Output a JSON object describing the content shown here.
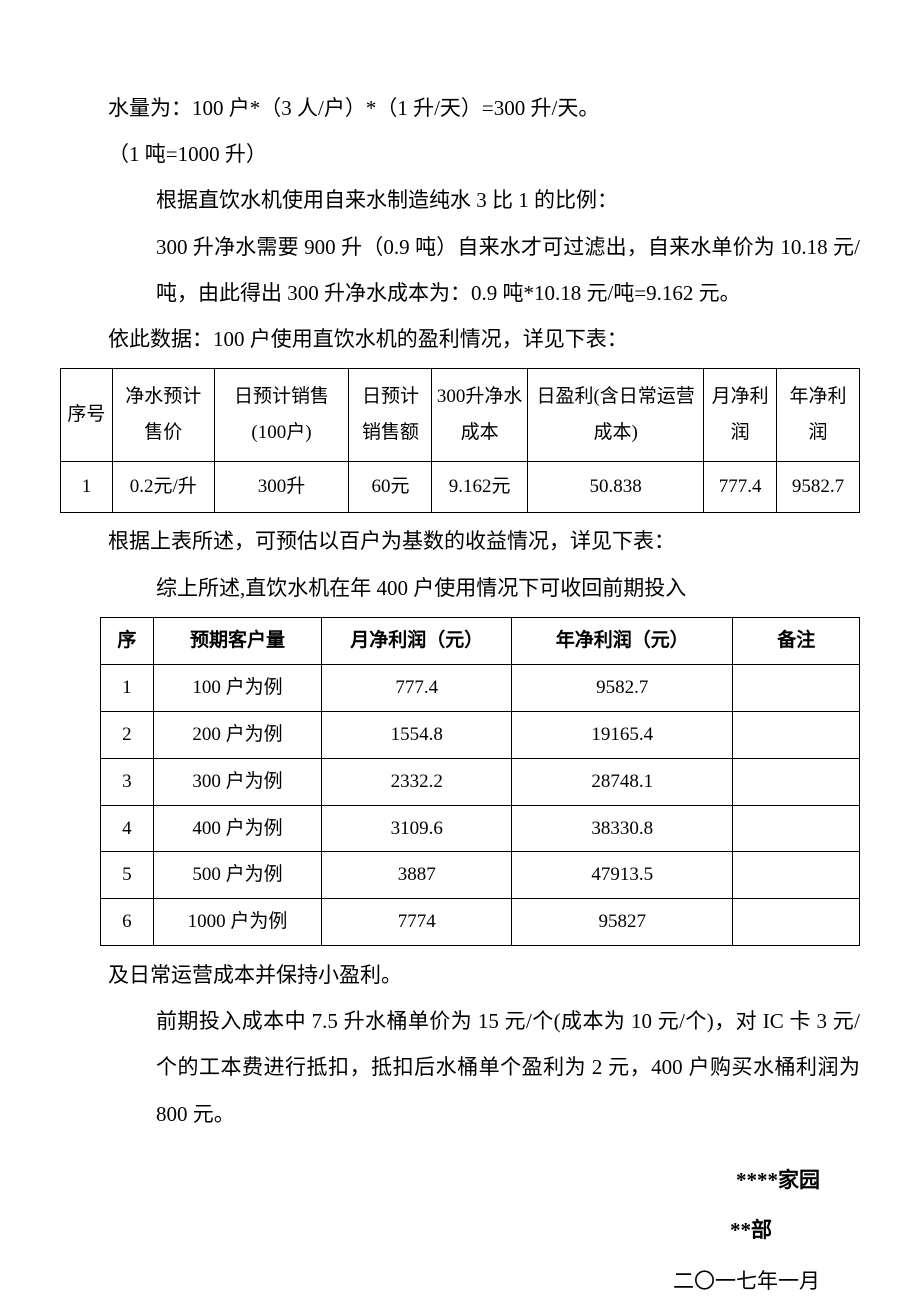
{
  "para1": "水量为：100 户*（3 人/户）*（1 升/天）=300 升/天。",
  "para2": "（1 吨=1000 升）",
  "para3": "根据直饮水机使用自来水制造纯水 3 比 1 的比例：",
  "para4": "300 升净水需要 900 升（0.9 吨）自来水才可过滤出，自来水单价为 10.18 元/吨，由此得出 300 升净水成本为：0.9 吨*10.18 元/吨=9.162 元。",
  "para5": "依此数据：100 户使用直饮水机的盈利情况，详见下表：",
  "table1": {
    "headers": [
      "序号",
      "净水预计售价",
      "日预计销售(100户)",
      "日预计销售额",
      "300升净水成本",
      "日盈利(含日常运营成本)",
      "月净利润",
      "年净利润"
    ],
    "row": [
      "1",
      "0.2元/升",
      "300升",
      "60元",
      "9.162元",
      "50.838",
      "777.4",
      "9582.7"
    ],
    "col_widths": [
      "50",
      "98",
      "130",
      "80",
      "92",
      "170",
      "70",
      "80"
    ]
  },
  "para6": "根据上表所述，可预估以百户为基数的收益情况，详见下表：",
  "para7": "综上所述,直饮水机在年 400 户使用情况下可收回前期投入",
  "table2": {
    "headers": [
      "序",
      "预期客户量",
      "月净利润（元）",
      "年净利润（元）",
      "备注"
    ],
    "rows": [
      [
        "1",
        "100 户为例",
        "777.4",
        "9582.7",
        ""
      ],
      [
        "2",
        "200 户为例",
        "1554.8",
        "19165.4",
        ""
      ],
      [
        "3",
        "300 户为例",
        "2332.2",
        "28748.1",
        ""
      ],
      [
        "4",
        "400 户为例",
        "3109.6",
        "38330.8",
        ""
      ],
      [
        "5",
        "500 户为例",
        "3887",
        "47913.5",
        ""
      ],
      [
        "6",
        "1000 户为例",
        "7774",
        "95827",
        ""
      ]
    ],
    "col_widths": [
      "50",
      "160",
      "180",
      "210",
      "120"
    ]
  },
  "para8": "及日常运营成本并保持小盈利。",
  "para9": "前期投入成本中 7.5 升水桶单价为 15 元/个(成本为 10 元/个)，对 IC 卡 3 元/个的工本费进行抵扣，抵扣后水桶单个盈利为 2 元，400 户购买水桶利润为 800 元。",
  "sig1": "****家园",
  "sig2": "**部",
  "sig3": "二〇一七年一月"
}
